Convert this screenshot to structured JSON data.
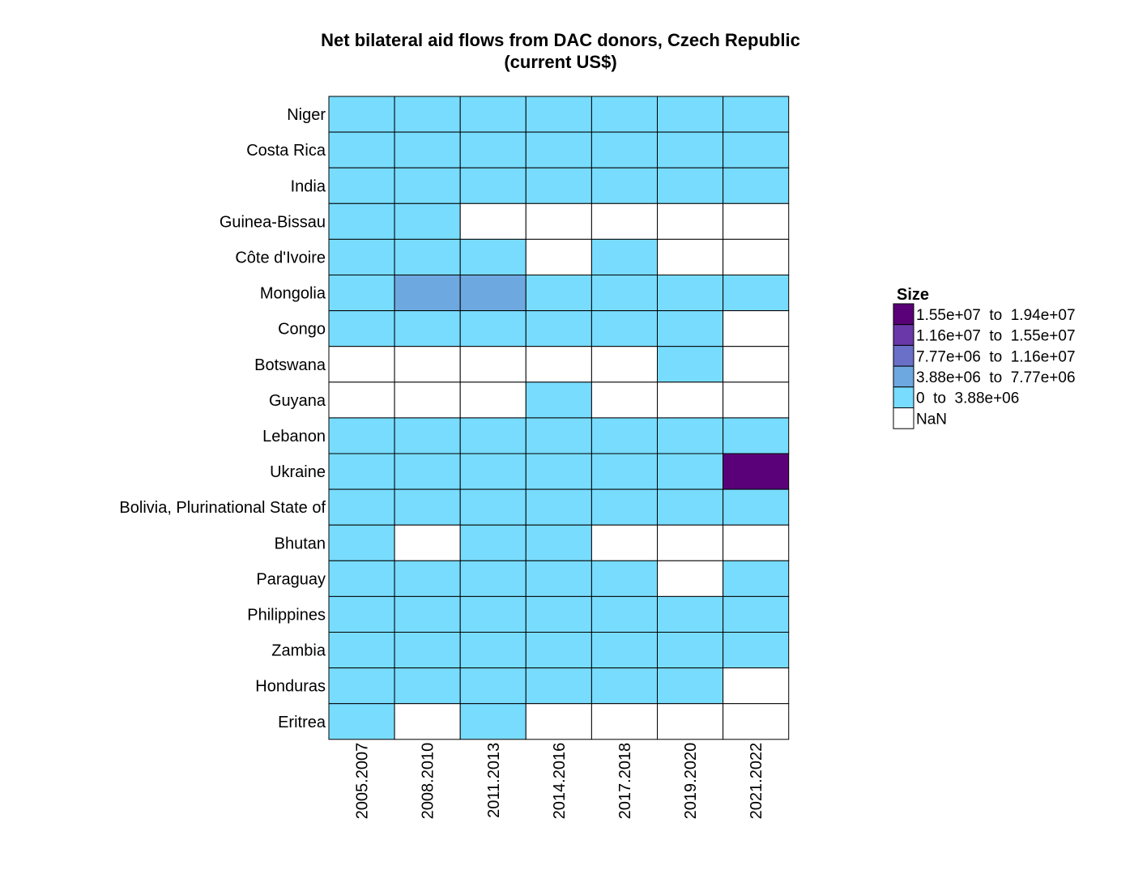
{
  "chart_data": {
    "type": "heatmap",
    "title": "Net bilateral aid flows from DAC donors, Czech Republic",
    "subtitle": "(current US$)",
    "columns": [
      "2005.2007",
      "2008.2010",
      "2011.2013",
      "2014.2016",
      "2017.2018",
      "2019.2020",
      "2021.2022"
    ],
    "rows": [
      "Niger",
      "Costa Rica",
      "India",
      "Guinea-Bissau",
      "Côte d'Ivoire",
      "Mongolia",
      "Congo",
      "Botswana",
      "Guyana",
      "Lebanon",
      "Ukraine",
      "Bolivia, Plurinational State of",
      "Bhutan",
      "Paraguay",
      "Philippines",
      "Zambia",
      "Honduras",
      "Eritrea"
    ],
    "cells": [
      [
        0,
        0,
        0,
        0,
        0,
        0,
        0
      ],
      [
        0,
        0,
        0,
        0,
        0,
        0,
        0
      ],
      [
        0,
        0,
        0,
        0,
        0,
        0,
        0
      ],
      [
        0,
        0,
        null,
        null,
        null,
        null,
        null
      ],
      [
        0,
        0,
        0,
        null,
        0,
        null,
        null
      ],
      [
        0,
        1,
        1,
        0,
        0,
        0,
        0
      ],
      [
        0,
        0,
        0,
        0,
        0,
        0,
        null
      ],
      [
        null,
        null,
        null,
        null,
        null,
        0,
        null
      ],
      [
        null,
        null,
        null,
        0,
        null,
        null,
        null
      ],
      [
        0,
        0,
        0,
        0,
        0,
        0,
        0
      ],
      [
        0,
        0,
        0,
        0,
        0,
        0,
        4
      ],
      [
        0,
        0,
        0,
        0,
        0,
        0,
        0
      ],
      [
        0,
        null,
        0,
        0,
        null,
        null,
        null
      ],
      [
        0,
        0,
        0,
        0,
        0,
        null,
        0
      ],
      [
        0,
        0,
        0,
        0,
        0,
        0,
        0
      ],
      [
        0,
        0,
        0,
        0,
        0,
        0,
        0
      ],
      [
        0,
        0,
        0,
        0,
        0,
        0,
        null
      ],
      [
        0,
        null,
        0,
        null,
        null,
        null,
        null
      ]
    ],
    "legend": {
      "title": "Size",
      "placement": "right",
      "bins": [
        {
          "label": "1.55e+07  to  1.94e+07",
          "color": "#5a0078"
        },
        {
          "label": "1.16e+07  to  1.55e+07",
          "color": "#6a38a8"
        },
        {
          "label": "7.77e+06  to  1.16e+07",
          "color": "#6a70c8"
        },
        {
          "label": "3.88e+06  to  7.77e+06",
          "color": "#6ea8e0"
        },
        {
          "label": "0  to  3.88e+06",
          "color": "#78dcfe"
        },
        {
          "label": "NaN",
          "color": "#ffffff"
        }
      ]
    }
  }
}
